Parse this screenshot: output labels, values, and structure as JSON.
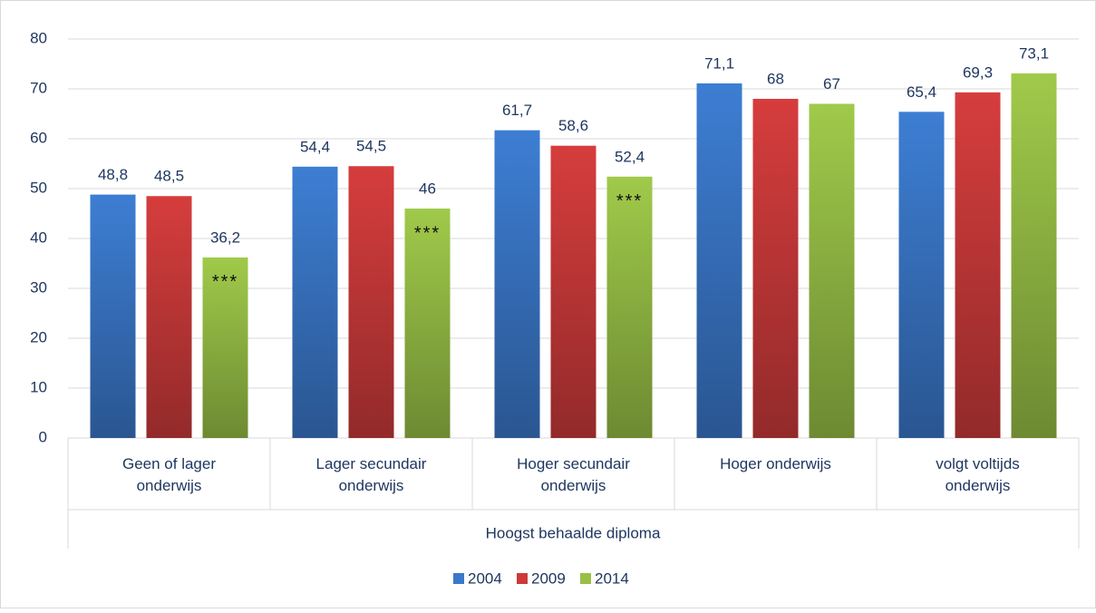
{
  "chart_data": {
    "type": "bar",
    "x_label": "Hoogst behaalde diploma",
    "categories": [
      "Geen of lager\nonderwijs",
      "Lager secundair\nonderwijs",
      "Hoger secundair\nonderwijs",
      "Hoger onderwijs",
      "volgt voltijds\nonderwijs"
    ],
    "series": [
      {
        "name": "2004",
        "color": "#3a78c9",
        "values": [
          48.8,
          54.4,
          61.7,
          71.1,
          65.4
        ],
        "value_labels": [
          "48,8",
          "54,4",
          "61,7",
          "71,1",
          "65,4"
        ]
      },
      {
        "name": "2009",
        "color": "#cc3a3a",
        "values": [
          48.5,
          54.5,
          58.6,
          68,
          69.3
        ],
        "value_labels": [
          "48,5",
          "54,5",
          "58,6",
          "68",
          "69,3"
        ]
      },
      {
        "name": "2014",
        "color": "#98c046",
        "values": [
          36.2,
          46,
          52.4,
          67,
          73.1
        ],
        "value_labels": [
          "36,2",
          "46",
          "52,4",
          "67",
          "73,1"
        ],
        "annotations": [
          "***",
          "***",
          "***",
          null,
          null
        ]
      }
    ],
    "ylim": [
      0,
      80
    ],
    "yticks": [
      0,
      10,
      20,
      30,
      40,
      50,
      60,
      70,
      80
    ],
    "grid": true,
    "legend": "bottom"
  }
}
